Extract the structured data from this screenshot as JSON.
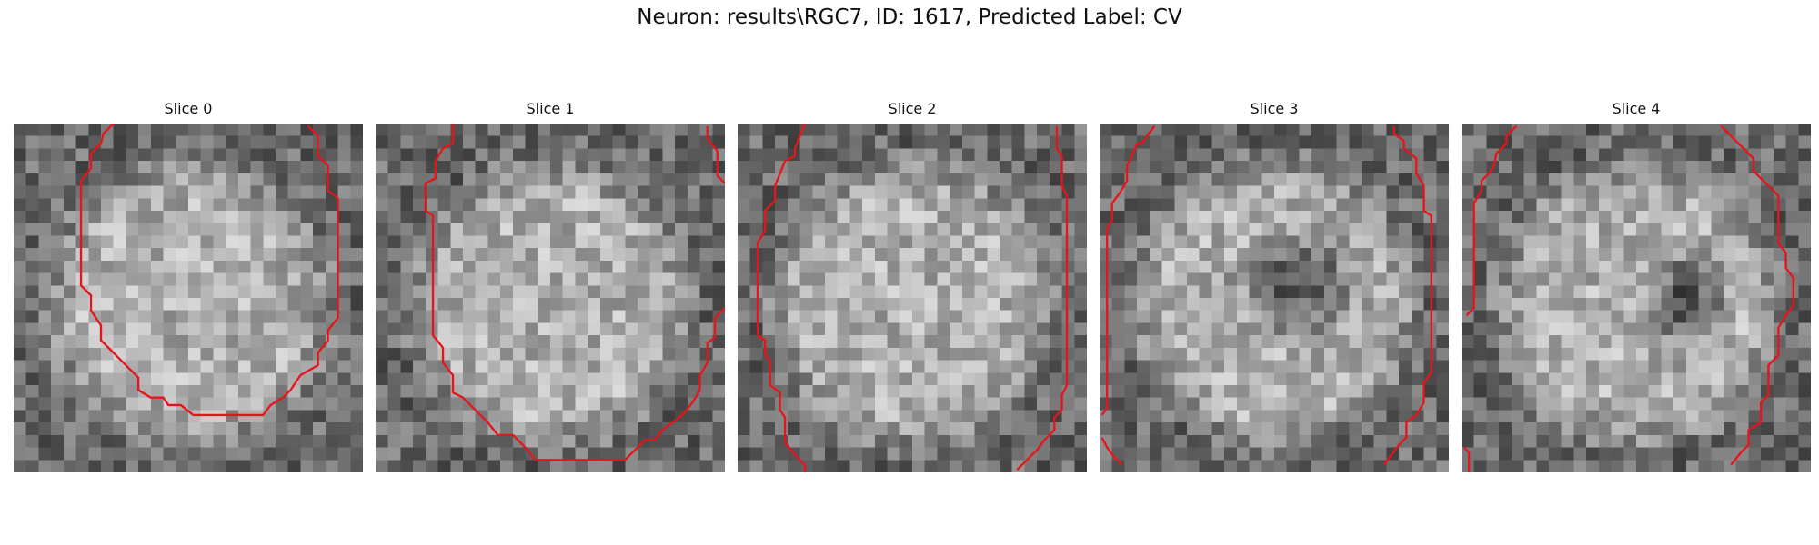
{
  "figure": {
    "title": "Neuron: results\\RGC7, ID: 1617, Predicted Label: CV"
  },
  "colors": {
    "contour": "#e8141b",
    "background": "#ffffff"
  },
  "panels": [
    {
      "title": "Slice 0",
      "grid_size": 28,
      "seed": 11,
      "contour_segments": [
        [
          [
            8.0,
            0
          ],
          [
            7.2,
            0.8
          ],
          [
            7.0,
            1.6
          ],
          [
            6.2,
            2.4
          ],
          [
            6.2,
            3.6
          ],
          [
            5.4,
            4.6
          ],
          [
            5.4,
            6.5
          ],
          [
            5.4,
            8.5
          ],
          [
            5.4,
            13.0
          ],
          [
            6.2,
            13.8
          ],
          [
            6.2,
            15.0
          ],
          [
            7.0,
            16.2
          ],
          [
            7.0,
            17.4
          ],
          [
            8.0,
            18.4
          ],
          [
            9.0,
            19.4
          ],
          [
            10.0,
            20.4
          ],
          [
            10.0,
            21.4
          ],
          [
            11.0,
            22.0
          ],
          [
            12.0,
            22.0
          ],
          [
            12.4,
            22.6
          ],
          [
            13.4,
            22.6
          ],
          [
            14.4,
            23.4
          ],
          [
            16.0,
            23.4
          ],
          [
            18.0,
            23.4
          ],
          [
            20.0,
            23.4
          ],
          [
            20.6,
            22.6
          ],
          [
            21.6,
            22.0
          ],
          [
            22.2,
            21.4
          ],
          [
            23.0,
            20.2
          ],
          [
            24.4,
            19.4
          ],
          [
            24.4,
            18.4
          ],
          [
            25.2,
            17.4
          ],
          [
            25.2,
            16.6
          ],
          [
            26.0,
            15.6
          ],
          [
            26.0,
            11.0
          ],
          [
            26.0,
            6.0
          ],
          [
            25.2,
            5.4
          ],
          [
            25.2,
            3.4
          ],
          [
            24.4,
            2.6
          ],
          [
            24.4,
            1.0
          ],
          [
            23.6,
            0.2
          ]
        ]
      ]
    },
    {
      "title": "Slice 1",
      "grid_size": 28,
      "seed": 23,
      "contour_segments": [
        [
          [
            6.2,
            0
          ],
          [
            6.2,
            1.6
          ],
          [
            5.4,
            2.0
          ],
          [
            4.8,
            3.0
          ],
          [
            4.8,
            4.4
          ],
          [
            4.0,
            4.8
          ],
          [
            4.0,
            7.0
          ],
          [
            4.6,
            7.4
          ],
          [
            4.6,
            12.0
          ],
          [
            4.6,
            17.0
          ],
          [
            5.4,
            18.0
          ],
          [
            5.4,
            19.2
          ],
          [
            6.2,
            20.2
          ],
          [
            6.2,
            21.6
          ],
          [
            7.0,
            22.0
          ],
          [
            8.0,
            23.0
          ],
          [
            9.0,
            24.0
          ],
          [
            9.8,
            25.0
          ],
          [
            11.0,
            25.0
          ],
          [
            12.0,
            26.0
          ],
          [
            12.8,
            27.0
          ],
          [
            14.0,
            27.0
          ],
          [
            17.0,
            27.0
          ],
          [
            20.0,
            27.0
          ],
          [
            20.8,
            26.2
          ],
          [
            21.6,
            25.4
          ],
          [
            22.4,
            25.4
          ],
          [
            23.0,
            24.6
          ],
          [
            23.8,
            24.0
          ],
          [
            24.6,
            23.4
          ],
          [
            25.4,
            22.4
          ],
          [
            26.0,
            21.4
          ],
          [
            26.0,
            20.2
          ],
          [
            26.6,
            19.2
          ],
          [
            26.6,
            17.6
          ],
          [
            27.2,
            17.2
          ],
          [
            27.2,
            15.6
          ],
          [
            28.0,
            14.8
          ]
        ],
        [
          [
            26.6,
            0.2
          ],
          [
            26.6,
            1.2
          ],
          [
            27.4,
            2.2
          ],
          [
            27.4,
            4.2
          ],
          [
            28.0,
            4.8
          ]
        ]
      ]
    },
    {
      "title": "Slice 2",
      "grid_size": 28,
      "seed": 37,
      "contour_segments": [
        [
          [
            5.4,
            0
          ],
          [
            5.0,
            1.0
          ],
          [
            4.6,
            2.0
          ],
          [
            4.6,
            2.6
          ],
          [
            3.8,
            3.0
          ],
          [
            3.4,
            4.0
          ],
          [
            3.0,
            5.0
          ],
          [
            3.0,
            6.2
          ],
          [
            2.2,
            7.0
          ],
          [
            2.2,
            8.6
          ],
          [
            1.6,
            9.6
          ],
          [
            1.6,
            13.0
          ],
          [
            1.6,
            16.0
          ],
          [
            1.6,
            17.0
          ],
          [
            2.2,
            17.4
          ],
          [
            2.2,
            18.6
          ],
          [
            2.6,
            19.0
          ],
          [
            2.6,
            21.0
          ],
          [
            3.4,
            21.6
          ],
          [
            3.4,
            23.0
          ],
          [
            3.8,
            23.6
          ],
          [
            3.8,
            25.6
          ],
          [
            4.6,
            26.6
          ],
          [
            5.4,
            27.4
          ],
          [
            5.4,
            28.0
          ]
        ],
        [
          [
            25.6,
            0.2
          ],
          [
            25.6,
            2.0
          ],
          [
            26.0,
            2.6
          ],
          [
            26.0,
            5.0
          ],
          [
            26.4,
            5.8
          ],
          [
            26.4,
            12.0
          ],
          [
            26.4,
            21.0
          ],
          [
            26.0,
            21.8
          ],
          [
            26.0,
            23.0
          ],
          [
            25.4,
            23.6
          ],
          [
            25.4,
            24.6
          ],
          [
            24.6,
            25.4
          ],
          [
            24.0,
            26.2
          ],
          [
            23.2,
            27.0
          ],
          [
            22.4,
            27.8
          ]
        ]
      ]
    },
    {
      "title": "Slice 3",
      "grid_size": 28,
      "seed": 53,
      "contour_segments": [
        [
          [
            4.4,
            0.2
          ],
          [
            3.8,
            1.0
          ],
          [
            3.4,
            1.6
          ],
          [
            3.0,
            1.6
          ],
          [
            2.6,
            2.6
          ],
          [
            2.2,
            3.4
          ],
          [
            2.2,
            4.6
          ],
          [
            1.6,
            5.6
          ],
          [
            1.0,
            6.4
          ],
          [
            1.0,
            7.8
          ],
          [
            0.6,
            8.4
          ],
          [
            0.6,
            14.0
          ],
          [
            0.6,
            21.0
          ],
          [
            0.6,
            22.8
          ],
          [
            0.2,
            23.4
          ]
        ],
        [
          [
            0.2,
            25.2
          ],
          [
            0.6,
            26.0
          ],
          [
            1.2,
            26.8
          ],
          [
            1.8,
            27.4
          ]
        ],
        [
          [
            23.6,
            0.2
          ],
          [
            23.6,
            0.8
          ],
          [
            24.4,
            1.4
          ],
          [
            24.4,
            2.0
          ],
          [
            25.4,
            2.8
          ],
          [
            25.4,
            4.0
          ],
          [
            26.0,
            5.0
          ],
          [
            26.0,
            7.0
          ],
          [
            26.6,
            7.4
          ],
          [
            26.6,
            12.0
          ],
          [
            26.6,
            20.0
          ],
          [
            26.0,
            20.8
          ],
          [
            26.0,
            22.4
          ],
          [
            25.4,
            23.4
          ],
          [
            24.6,
            24.0
          ],
          [
            24.6,
            25.2
          ],
          [
            24.0,
            25.8
          ],
          [
            23.4,
            26.6
          ],
          [
            22.8,
            27.4
          ]
        ]
      ]
    },
    {
      "title": "Slice 4",
      "grid_size": 28,
      "seed": 71,
      "contour_segments": [
        [
          [
            4.4,
            0.2
          ],
          [
            3.6,
            1.0
          ],
          [
            3.6,
            1.6
          ],
          [
            2.8,
            2.4
          ],
          [
            2.6,
            3.4
          ],
          [
            2.2,
            4.0
          ],
          [
            1.6,
            4.6
          ],
          [
            1.6,
            5.4
          ],
          [
            1.0,
            6.4
          ],
          [
            1.0,
            8.0
          ],
          [
            1.0,
            12.0
          ],
          [
            1.0,
            14.8
          ],
          [
            0.4,
            15.4
          ]
        ],
        [
          [
            0.2,
            26.0
          ],
          [
            0.6,
            26.4
          ],
          [
            0.6,
            28.0
          ]
        ],
        [
          [
            20.8,
            0.2
          ],
          [
            21.6,
            1.0
          ],
          [
            22.4,
            1.8
          ],
          [
            23.4,
            2.8
          ],
          [
            23.4,
            3.8
          ],
          [
            24.4,
            4.8
          ],
          [
            25.4,
            5.8
          ],
          [
            25.4,
            9.6
          ],
          [
            26.0,
            10.4
          ],
          [
            26.0,
            11.6
          ],
          [
            26.6,
            12.4
          ],
          [
            26.6,
            14.6
          ],
          [
            26.0,
            15.4
          ],
          [
            25.4,
            16.4
          ],
          [
            25.4,
            18.6
          ],
          [
            24.6,
            19.4
          ],
          [
            24.6,
            21.8
          ],
          [
            24.0,
            22.4
          ],
          [
            24.0,
            24.0
          ],
          [
            23.0,
            24.6
          ],
          [
            23.0,
            25.8
          ],
          [
            22.4,
            26.4
          ],
          [
            21.6,
            27.4
          ]
        ]
      ]
    }
  ]
}
